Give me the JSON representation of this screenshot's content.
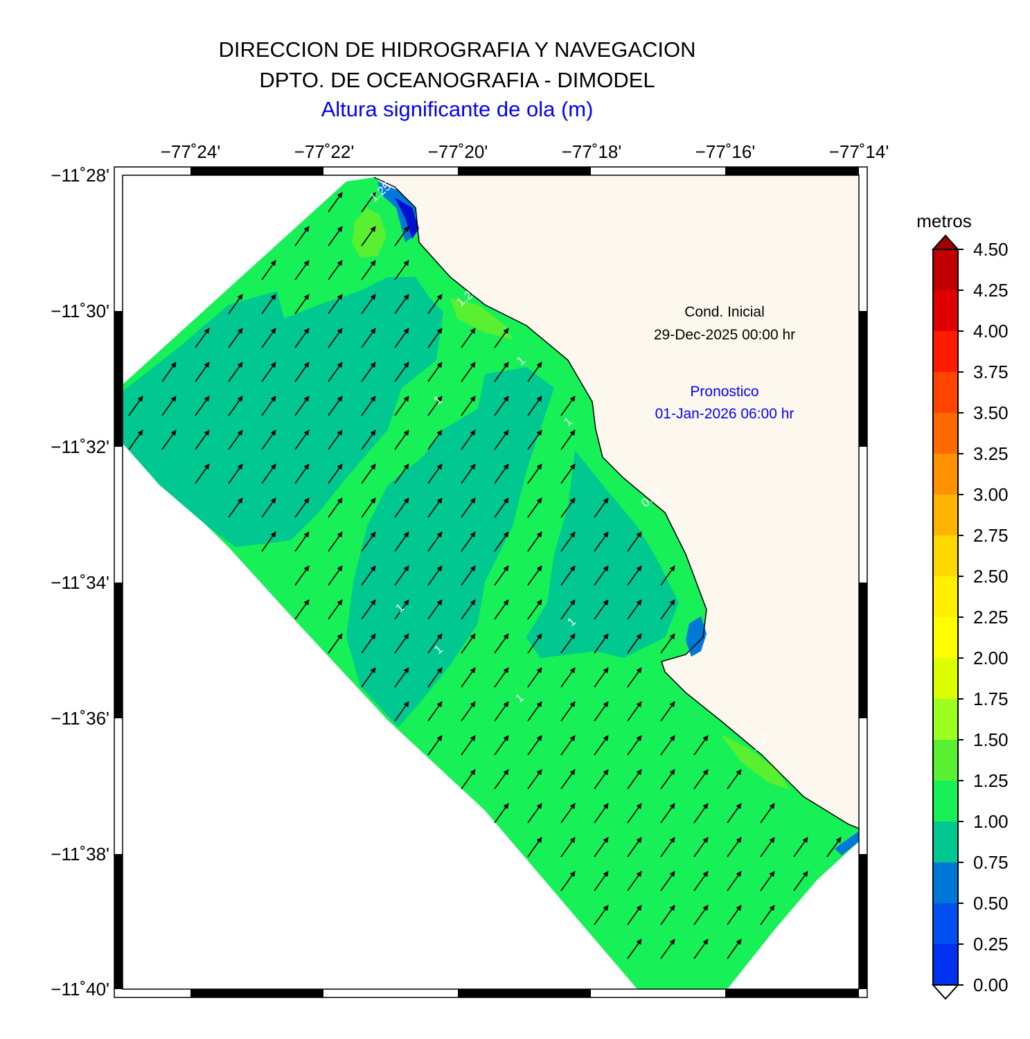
{
  "header": {
    "line1": "DIRECCION DE HIDROGRAFIA Y NAVEGACION",
    "line2": "DPTO. DE OCEANOGRAFIA - DIMODEL",
    "line3": "Altura significante de ola (m)"
  },
  "map": {
    "lon_ticks": [
      "−77˚24'",
      "−77˚22'",
      "−77˚20'",
      "−77˚18'",
      "−77˚16'",
      "−77˚14'"
    ],
    "lat_ticks": [
      "−11˚28'",
      "−11˚30'",
      "−11˚32'",
      "−11˚34'",
      "−11˚36'",
      "−11˚38'",
      "−11˚40'"
    ],
    "annotation_initial_label": "Cond. Inicial",
    "annotation_initial_date": "29-Dec-2025 00:00 hr",
    "annotation_forecast_label": "Pronostico",
    "annotation_forecast_date": "01-Jan-2026 06:00 hr",
    "contour_labels": [
      "1.25",
      "1.25",
      "1",
      "1",
      "1",
      "1",
      "1",
      "1",
      "1",
      "0.75",
      "1.25"
    ],
    "land_color": "#fdf8ee",
    "arrow_direction": "north-east"
  },
  "colorbar": {
    "unit": "metros",
    "levels": [
      "4.50",
      "4.25",
      "4.00",
      "3.75",
      "3.50",
      "3.25",
      "3.00",
      "2.75",
      "2.50",
      "2.25",
      "2.00",
      "1.75",
      "1.50",
      "1.25",
      "1.00",
      "0.75",
      "0.50",
      "0.25",
      "0.00"
    ],
    "colors": [
      "#c00000",
      "#e00000",
      "#ff1a00",
      "#ff4400",
      "#ff6a00",
      "#ff9000",
      "#ffb400",
      "#ffd800",
      "#fff000",
      "#ffff00",
      "#dcff00",
      "#9cff20",
      "#58f030",
      "#18f058",
      "#00c890",
      "#0078d8",
      "#0050f0",
      "#0030f0",
      "#0010d0"
    ]
  }
}
